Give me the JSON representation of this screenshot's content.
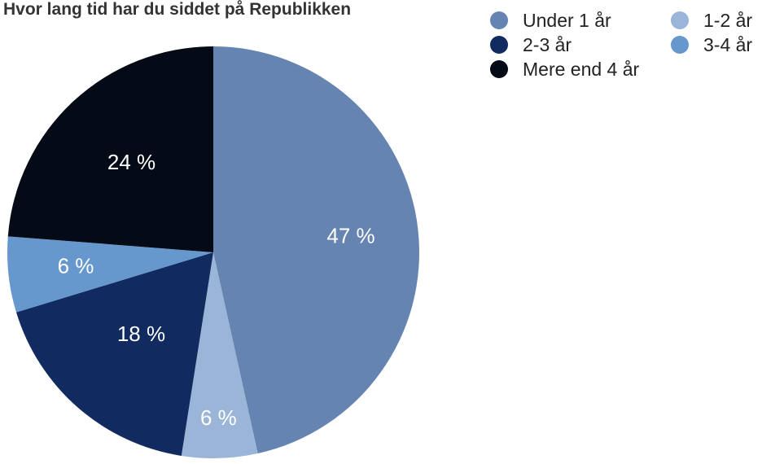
{
  "chart_data": {
    "type": "pie",
    "title": "Hvor lang tid har du siddet på Republikken",
    "categories": [
      "Under 1 år",
      "1-2 år",
      "2-3 år",
      "3-4 år",
      "Mere end 4 år"
    ],
    "values": [
      47,
      6,
      18,
      6,
      24
    ],
    "value_labels": [
      "47 %",
      "6 %",
      "18 %",
      "6 %",
      "24 %"
    ],
    "colors": [
      "#6684b1",
      "#9ab5d7",
      "#112a60",
      "#6698cd",
      "#040b16"
    ],
    "legend_position": "top-right"
  }
}
